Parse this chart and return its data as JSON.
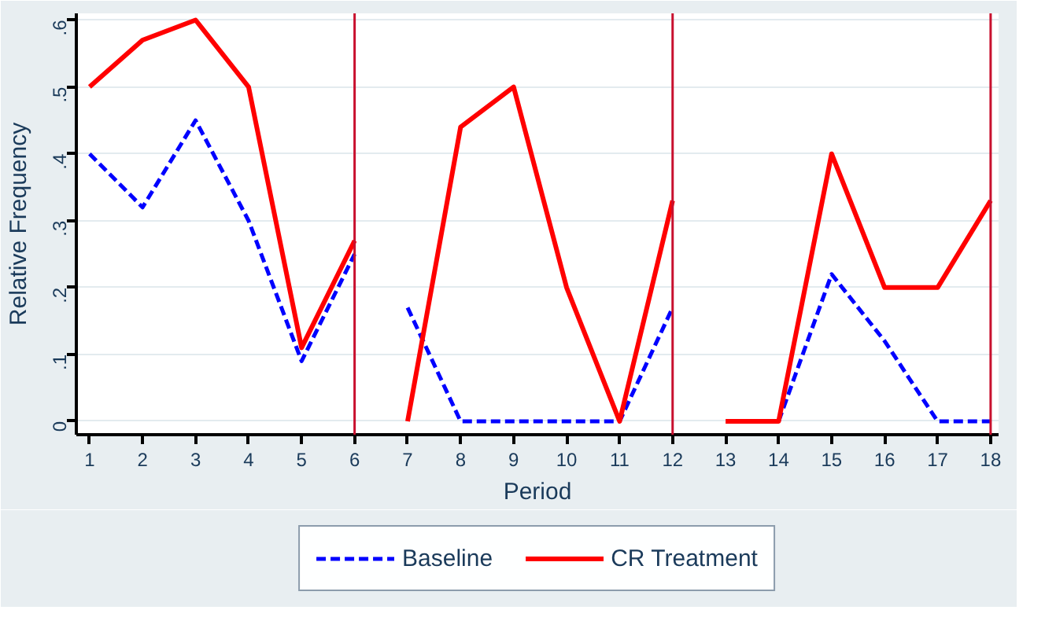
{
  "chart_data": {
    "type": "line",
    "xlabel": "Period",
    "ylabel": "Relative Frequency",
    "xlim": [
      0.75,
      18.15
    ],
    "ylim": [
      -0.02,
      0.61
    ],
    "xticks": [
      1,
      2,
      3,
      4,
      5,
      6,
      7,
      8,
      9,
      10,
      11,
      12,
      13,
      14,
      15,
      16,
      17,
      18
    ],
    "yticks": [
      {
        "value": 0,
        "label": "0"
      },
      {
        "value": 0.1,
        "label": ".1"
      },
      {
        "value": 0.2,
        "label": ".2"
      },
      {
        "value": 0.3,
        "label": ".3"
      },
      {
        "value": 0.4,
        "label": ".4"
      },
      {
        "value": 0.5,
        "label": ".5"
      },
      {
        "value": 0.6,
        "label": ".6"
      }
    ],
    "grid": "y",
    "legend": "bottom",
    "marker": "none",
    "series": [
      {
        "name": "Baseline",
        "color": "#0000ff",
        "line_style": "dashed",
        "x": [
          1,
          2,
          3,
          4,
          5,
          6
        ],
        "values": [
          0.4,
          0.32,
          0.45,
          0.3,
          0.09,
          0.25
        ]
      },
      {
        "color": "#0000ff",
        "line_style": "dashed",
        "x": [
          7,
          8,
          9,
          10,
          11,
          12
        ],
        "values": [
          0.17,
          0,
          0,
          0,
          0,
          0.17
        ]
      },
      {
        "color": "#0000ff",
        "line_style": "dashed",
        "x": [
          14,
          15,
          16,
          17,
          18
        ],
        "values": [
          0,
          0.22,
          0.12,
          0,
          0
        ]
      },
      {
        "name": "CR Treatment",
        "color": "#ff0000",
        "line_style": "solid",
        "x": [
          1,
          2,
          3,
          4,
          5,
          6
        ],
        "values": [
          0.5,
          0.57,
          0.6,
          0.5,
          0.11,
          0.27
        ]
      },
      {
        "color": "#ff0000",
        "line_style": "solid",
        "x": [
          7,
          8,
          9,
          10,
          11,
          12
        ],
        "values": [
          0,
          0.44,
          0.5,
          0.2,
          0,
          0.33
        ]
      },
      {
        "color": "#ff0000",
        "line_style": "solid",
        "x": [
          13,
          14,
          15,
          16,
          17,
          18
        ],
        "values": [
          0,
          0,
          0.4,
          0.2,
          0.2,
          0.33
        ]
      }
    ],
    "ref_lines": [
      {
        "axis": "x",
        "value": 6,
        "color": "#c8102e"
      },
      {
        "axis": "x",
        "value": 12,
        "color": "#c8102e"
      },
      {
        "axis": "x",
        "value": 18,
        "color": "#c8102e"
      }
    ]
  }
}
